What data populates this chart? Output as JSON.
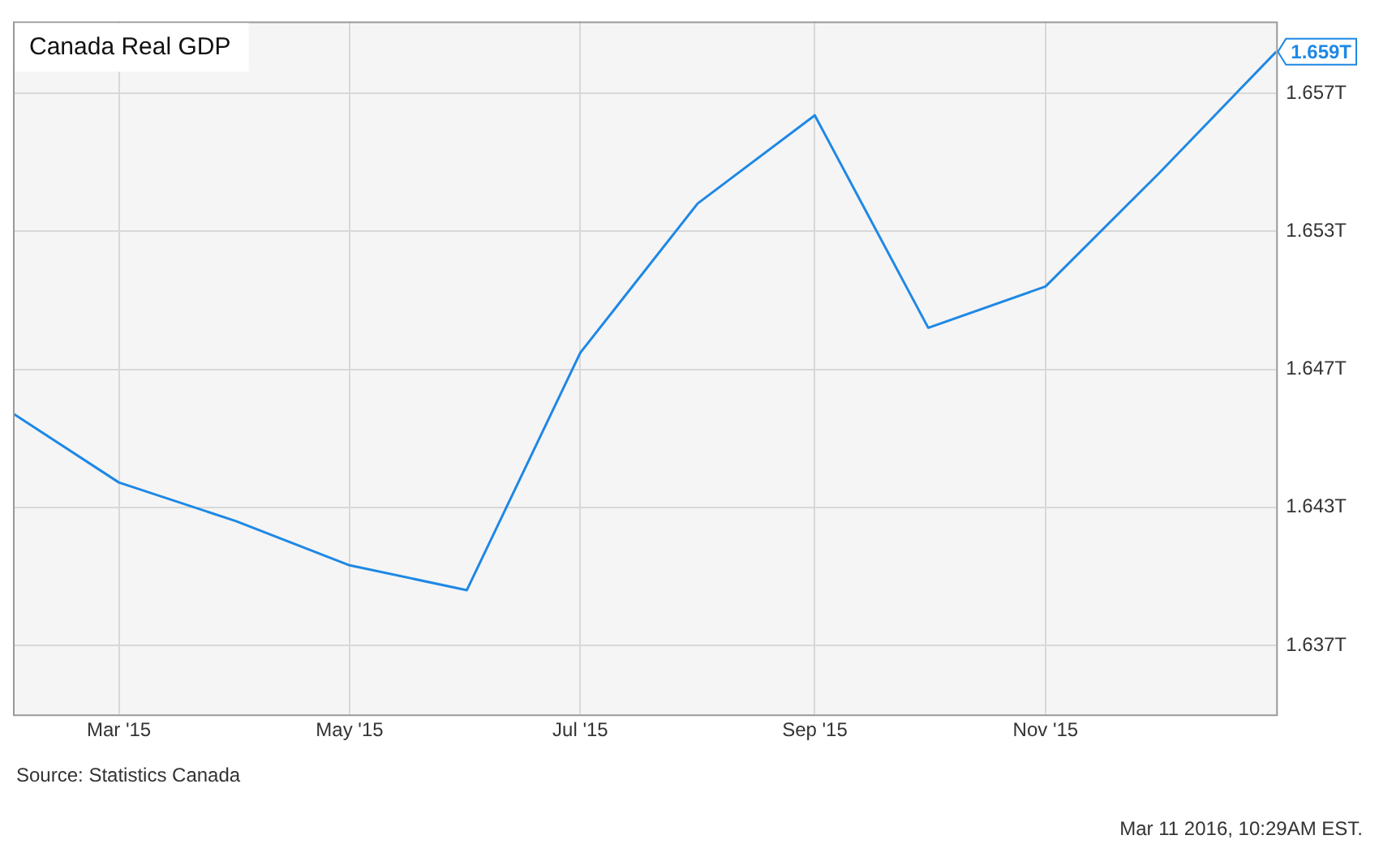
{
  "chart_data": {
    "type": "line",
    "title": "Canada Real GDP",
    "x": [
      "2015-02-01",
      "2015-03-01",
      "2015-04-01",
      "2015-05-01",
      "2015-06-01",
      "2015-07-01",
      "2015-08-01",
      "2015-09-01",
      "2015-10-01",
      "2015-11-01",
      "2015-12-01",
      "2016-01-01"
    ],
    "series": [
      {
        "color": "#1e88e5",
        "values": [
          1.6459,
          1.6434,
          1.642,
          1.6404,
          1.6395,
          1.6481,
          1.6535,
          1.6567,
          1.649,
          1.6505,
          1.6546,
          1.659
        ],
        "value_labels": [
          null,
          null,
          null,
          null,
          null,
          null,
          null,
          null,
          null,
          null,
          null,
          "1.659T"
        ]
      }
    ],
    "xlim": [
      "2015-02-01",
      "2016-01-01"
    ],
    "xticks": [
      {
        "value": "2015-03-01",
        "label": "Mar '15"
      },
      {
        "value": "2015-05-01",
        "label": "May '15"
      },
      {
        "value": "2015-07-01",
        "label": "Jul '15"
      },
      {
        "value": "2015-09-01",
        "label": "Sep '15"
      },
      {
        "value": "2015-11-01",
        "label": "Nov '15"
      }
    ],
    "ylim": [
      1.635,
      1.6601
    ],
    "yticks": [
      {
        "value": 1.6375,
        "label": "1.637T"
      },
      {
        "value": 1.6425,
        "label": "1.643T"
      },
      {
        "value": 1.6475,
        "label": "1.647T"
      },
      {
        "value": 1.6525,
        "label": "1.653T"
      },
      {
        "value": 1.6575,
        "label": "1.657T"
      }
    ],
    "grid": true,
    "legend": false,
    "marker": "none",
    "line_style": "solid",
    "annotations": [
      "Source: Statistics Canada",
      "Mar 11 2016, 10:29AM EST."
    ]
  }
}
